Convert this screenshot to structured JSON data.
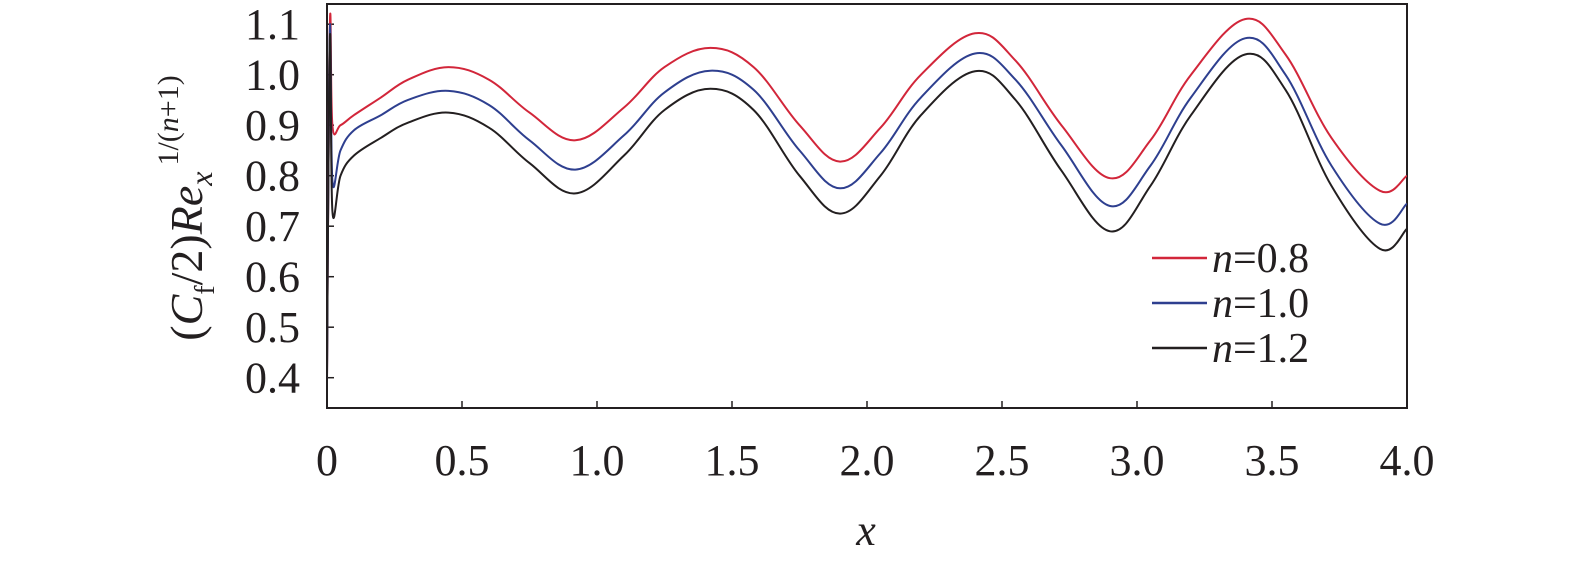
{
  "chart_data": {
    "type": "line",
    "title": "",
    "xlabel": "x",
    "ylabel": {
      "open": "(",
      "c": "C",
      "f": "f",
      "mid": "/2)",
      "re": "Re",
      "x": "x",
      "exp_pre": "1/(",
      "exp_n": "n",
      "exp_post": "+1)"
    },
    "xlim": [
      0,
      4.0
    ],
    "ylim": [
      0.34,
      1.14
    ],
    "xticks": [
      "0",
      "0.5",
      "1.0",
      "1.5",
      "2.0",
      "2.5",
      "3.0",
      "3.5",
      "4.0"
    ],
    "yticks": [
      "0.4",
      "0.5",
      "0.6",
      "0.7",
      "0.8",
      "0.9",
      "1.0",
      "1.1"
    ],
    "legend_position": "bottom-right",
    "grid": false,
    "series": [
      {
        "label_var": "n",
        "label_val": "=0.8",
        "color": "#d2263a",
        "x": [
          0,
          0.005,
          0.012,
          0.02,
          0.05,
          0.1,
          0.2,
          0.3,
          0.45,
          0.6,
          0.75,
          0.92,
          1.1,
          1.25,
          1.42,
          1.58,
          1.75,
          1.9,
          2.05,
          2.2,
          2.4,
          2.55,
          2.72,
          2.9,
          3.05,
          3.2,
          3.4,
          3.55,
          3.72,
          3.9,
          4.0
        ],
        "y": [
          0.4,
          0.8,
          1.12,
          0.9,
          0.9,
          0.92,
          0.955,
          0.99,
          1.015,
          0.99,
          0.925,
          0.87,
          0.935,
          1.015,
          1.053,
          1.015,
          0.9,
          0.828,
          0.895,
          1.0,
          1.082,
          1.028,
          0.9,
          0.795,
          0.87,
          1.0,
          1.11,
          1.04,
          0.875,
          0.77,
          0.8
        ]
      },
      {
        "label_var": "n",
        "label_val": "=1.0",
        "color": "#2e3f8f",
        "x": [
          0,
          0.005,
          0.012,
          0.02,
          0.05,
          0.1,
          0.2,
          0.3,
          0.45,
          0.6,
          0.75,
          0.92,
          1.1,
          1.25,
          1.42,
          1.58,
          1.75,
          1.9,
          2.05,
          2.2,
          2.4,
          2.55,
          2.72,
          2.9,
          3.05,
          3.2,
          3.4,
          3.55,
          3.72,
          3.9,
          4.0
        ],
        "y": [
          0.4,
          0.8,
          1.1,
          0.79,
          0.85,
          0.89,
          0.92,
          0.95,
          0.968,
          0.94,
          0.87,
          0.812,
          0.88,
          0.965,
          1.008,
          0.97,
          0.85,
          0.775,
          0.845,
          0.955,
          1.042,
          0.99,
          0.86,
          0.74,
          0.82,
          0.955,
          1.072,
          1.0,
          0.82,
          0.705,
          0.745
        ]
      },
      {
        "label_var": "n",
        "label_val": "=1.2",
        "color": "#231f20",
        "x": [
          0,
          0.005,
          0.012,
          0.02,
          0.05,
          0.1,
          0.2,
          0.3,
          0.45,
          0.6,
          0.75,
          0.92,
          1.1,
          1.25,
          1.42,
          1.58,
          1.75,
          1.9,
          2.05,
          2.2,
          2.4,
          2.55,
          2.72,
          2.9,
          3.05,
          3.2,
          3.4,
          3.55,
          3.72,
          3.9,
          4.0
        ],
        "y": [
          0.4,
          0.8,
          1.08,
          0.73,
          0.8,
          0.84,
          0.875,
          0.905,
          0.925,
          0.895,
          0.825,
          0.765,
          0.84,
          0.93,
          0.972,
          0.93,
          0.8,
          0.725,
          0.8,
          0.92,
          1.007,
          0.95,
          0.81,
          0.69,
          0.78,
          0.92,
          1.04,
          0.97,
          0.78,
          0.655,
          0.695
        ]
      }
    ]
  }
}
